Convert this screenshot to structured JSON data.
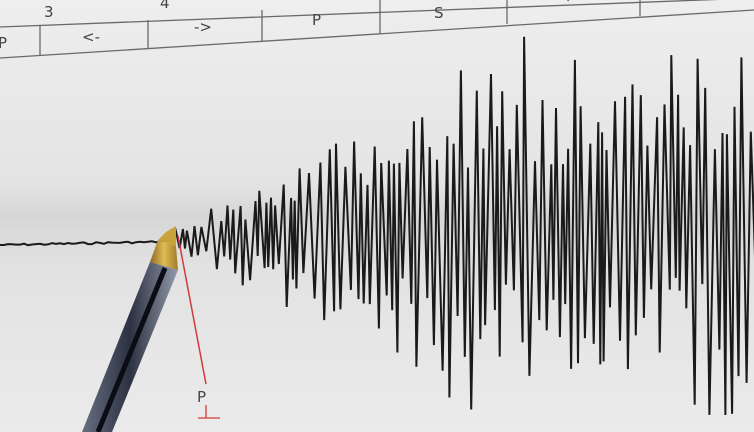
{
  "table": {
    "row1": [
      "3",
      "4",
      "S",
      "'"
    ],
    "row2": [
      "P",
      "<-",
      "->",
      "P"
    ]
  },
  "annotation": {
    "label": "P",
    "color": "#d23a3a"
  },
  "colors": {
    "paper": "#ececec",
    "trace": "#1a1a1a",
    "pen_tip": "#c9a23a",
    "pen_body": "#1c2233"
  }
}
